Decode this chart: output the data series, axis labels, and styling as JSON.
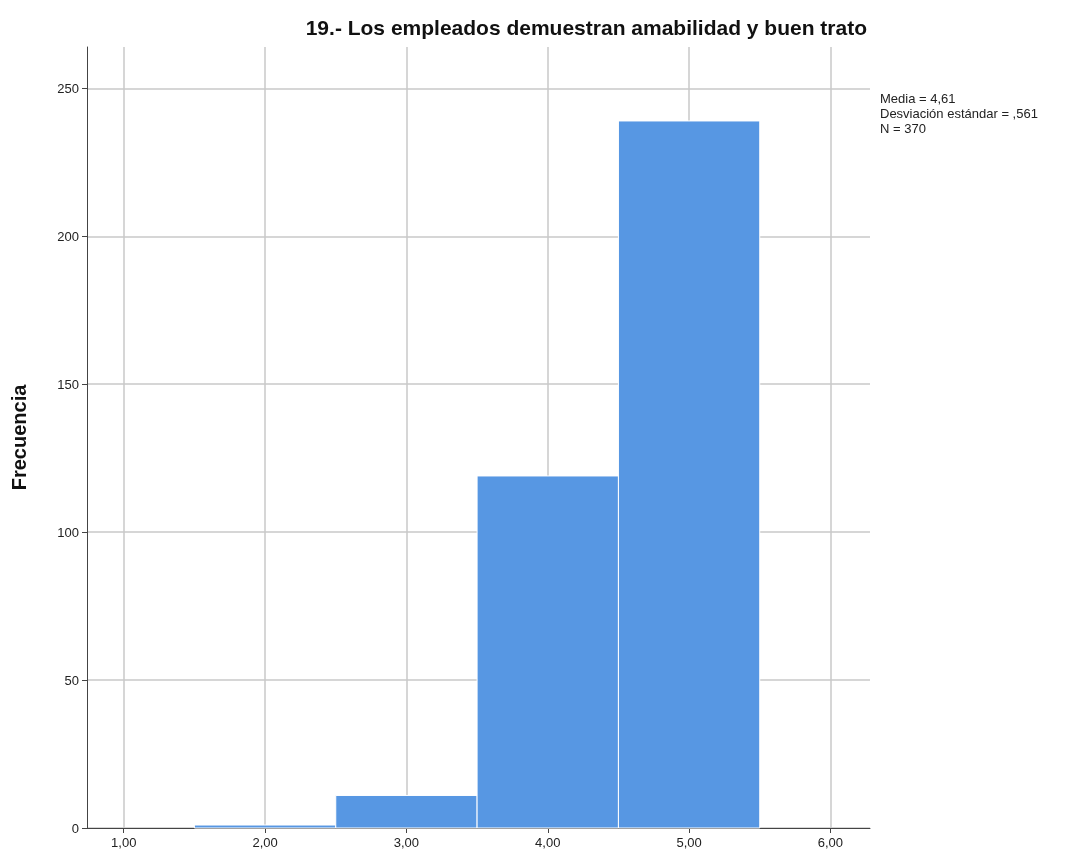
{
  "chart_data": {
    "type": "histogram",
    "title": "19.- Los empleados demuestran amabilidad y buen trato",
    "ylabel": "Frecuencia",
    "annotations": [
      "Media = 4,61",
      "Desviación estándar = ,561",
      "N = 370"
    ],
    "bins": [
      1.5,
      2.5,
      3.5,
      4.5,
      5.5
    ],
    "values": [
      1,
      11,
      119,
      239
    ],
    "color": "#5797e3",
    "xlim": [
      0.74,
      6.28
    ],
    "xticks": [
      {
        "value": 1,
        "label": "1,00"
      },
      {
        "value": 2,
        "label": "2,00"
      },
      {
        "value": 3,
        "label": "3,00"
      },
      {
        "value": 4,
        "label": "4,00"
      },
      {
        "value": 5,
        "label": "5,00"
      },
      {
        "value": 6,
        "label": "6,00"
      }
    ],
    "ylim": [
      0,
      264
    ],
    "yticks": [
      0,
      50,
      100,
      150,
      200,
      250
    ],
    "grid": true,
    "legend": false
  }
}
